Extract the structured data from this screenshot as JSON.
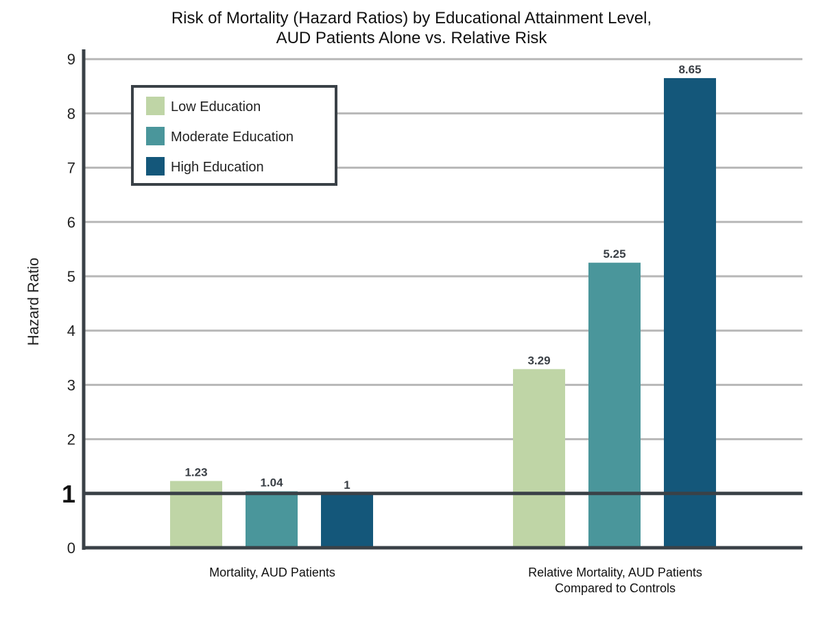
{
  "chart_data": {
    "type": "bar",
    "title": [
      "Risk of Mortality (Hazard Ratios) by Educational Attainment Level,",
      "AUD Patients Alone vs. Relative Risk"
    ],
    "ylabel": "Hazard Ratio",
    "xlabel": "",
    "ylim": [
      0,
      9
    ],
    "yticks": [
      "0",
      "1",
      "2",
      "3",
      "4",
      "5",
      "6",
      "7",
      "8",
      "9"
    ],
    "emphasized_tick": "1",
    "reference_line": 1,
    "grid": true,
    "legend_position": "top-left",
    "categories": [
      [
        "Mortality, AUD Patients"
      ],
      [
        "Relative Mortality, AUD Patients",
        "Compared to Controls"
      ]
    ],
    "series": [
      {
        "name": "Low Education",
        "color": "#bfd5a6",
        "values": [
          1.23,
          3.29
        ],
        "labels": [
          "1.23",
          "3.29"
        ]
      },
      {
        "name": "Moderate Education",
        "color": "#4a969b",
        "values": [
          1.04,
          5.25
        ],
        "labels": [
          "1.04",
          "5.25"
        ]
      },
      {
        "name": "High Education",
        "color": "#14577a",
        "values": [
          1,
          8.65
        ],
        "labels": [
          "1",
          "8.65"
        ]
      }
    ]
  },
  "colors": {
    "axis": "#3a4147",
    "grid": "#b7b7b7"
  }
}
